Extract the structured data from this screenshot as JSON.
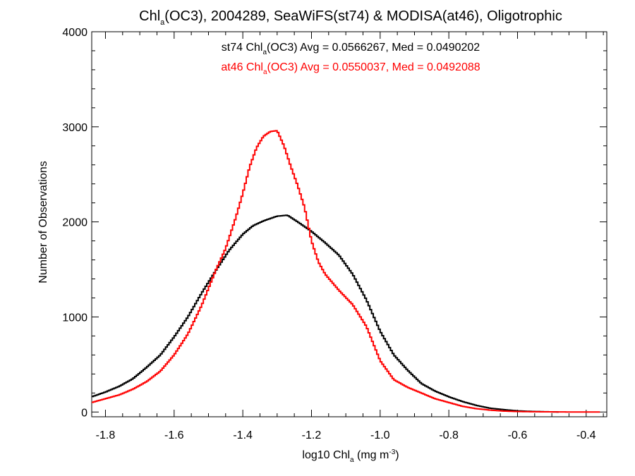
{
  "chart_data": {
    "type": "line",
    "step": true,
    "title": {
      "pre": "Chl",
      "sub": "a",
      "post": "(OC3), 2004289, SeaWiFS(st74) & MODISA(at46), Oligotrophic"
    },
    "xlabel": {
      "pre": "log10 Chl",
      "sub": "a",
      "mid": " (mg m",
      "sup": "-3",
      "post": ")"
    },
    "ylabel": "Number of Observations",
    "xlim": [
      -1.84,
      -0.34
    ],
    "ylim": [
      -50,
      4000
    ],
    "xticks": [
      -1.8,
      -1.6,
      -1.4,
      -1.2,
      -1.0,
      -0.8,
      -0.6,
      -0.4
    ],
    "xtick_labels": [
      "-1.8",
      "-1.6",
      "-1.4",
      "-1.2",
      "-1.0",
      "-0.8",
      "-0.6",
      "-0.4"
    ],
    "yticks": [
      0,
      1000,
      2000,
      3000,
      4000
    ],
    "ytick_labels": [
      "0",
      "1000",
      "2000",
      "3000",
      "4000"
    ],
    "grid": false,
    "annotations": [
      {
        "pre": "st74 Chl",
        "sub": "a",
        "post": "(OC3) Avg = 0.0566267, Med = 0.0490202",
        "color": "#000000"
      },
      {
        "pre": "at46 Chl",
        "sub": "a",
        "post": "(OC3) Avg = 0.0550037, Med = 0.0492088",
        "color": "#ff0000"
      }
    ],
    "series": [
      {
        "name": "st74",
        "color": "#000000",
        "x": [
          -1.84,
          -1.8,
          -1.76,
          -1.72,
          -1.68,
          -1.64,
          -1.6,
          -1.56,
          -1.52,
          -1.48,
          -1.44,
          -1.4,
          -1.37,
          -1.34,
          -1.3,
          -1.27,
          -1.24,
          -1.2,
          -1.16,
          -1.12,
          -1.08,
          -1.04,
          -1.0,
          -0.96,
          -0.92,
          -0.88,
          -0.84,
          -0.8,
          -0.76,
          -0.72,
          -0.68,
          -0.64,
          -0.6,
          -0.56,
          -0.52,
          -0.48
        ],
        "y": [
          160,
          210,
          270,
          350,
          470,
          600,
          790,
          1000,
          1250,
          1480,
          1700,
          1870,
          1960,
          2010,
          2060,
          2070,
          2000,
          1900,
          1780,
          1650,
          1450,
          1180,
          850,
          600,
          440,
          300,
          220,
          160,
          110,
          70,
          40,
          25,
          12,
          6,
          3,
          0
        ]
      },
      {
        "name": "at46",
        "color": "#ff0000",
        "x": [
          -1.84,
          -1.8,
          -1.76,
          -1.72,
          -1.68,
          -1.64,
          -1.6,
          -1.56,
          -1.52,
          -1.48,
          -1.45,
          -1.42,
          -1.4,
          -1.38,
          -1.36,
          -1.34,
          -1.32,
          -1.3,
          -1.28,
          -1.26,
          -1.24,
          -1.22,
          -1.2,
          -1.18,
          -1.16,
          -1.12,
          -1.08,
          -1.04,
          -1.0,
          -0.96,
          -0.92,
          -0.88,
          -0.84,
          -0.8,
          -0.76,
          -0.72,
          -0.68,
          -0.64,
          -0.6,
          -0.56,
          -0.52,
          -0.48,
          -0.44,
          -0.4,
          -0.36
        ],
        "y": [
          100,
          140,
          180,
          240,
          320,
          430,
          600,
          820,
          1120,
          1480,
          1720,
          2050,
          2300,
          2580,
          2780,
          2900,
          2950,
          2960,
          2800,
          2580,
          2380,
          2150,
          1800,
          1580,
          1450,
          1280,
          1130,
          900,
          540,
          340,
          260,
          200,
          140,
          100,
          60,
          35,
          20,
          10,
          5,
          3,
          2,
          1,
          0,
          0,
          0
        ]
      }
    ]
  }
}
